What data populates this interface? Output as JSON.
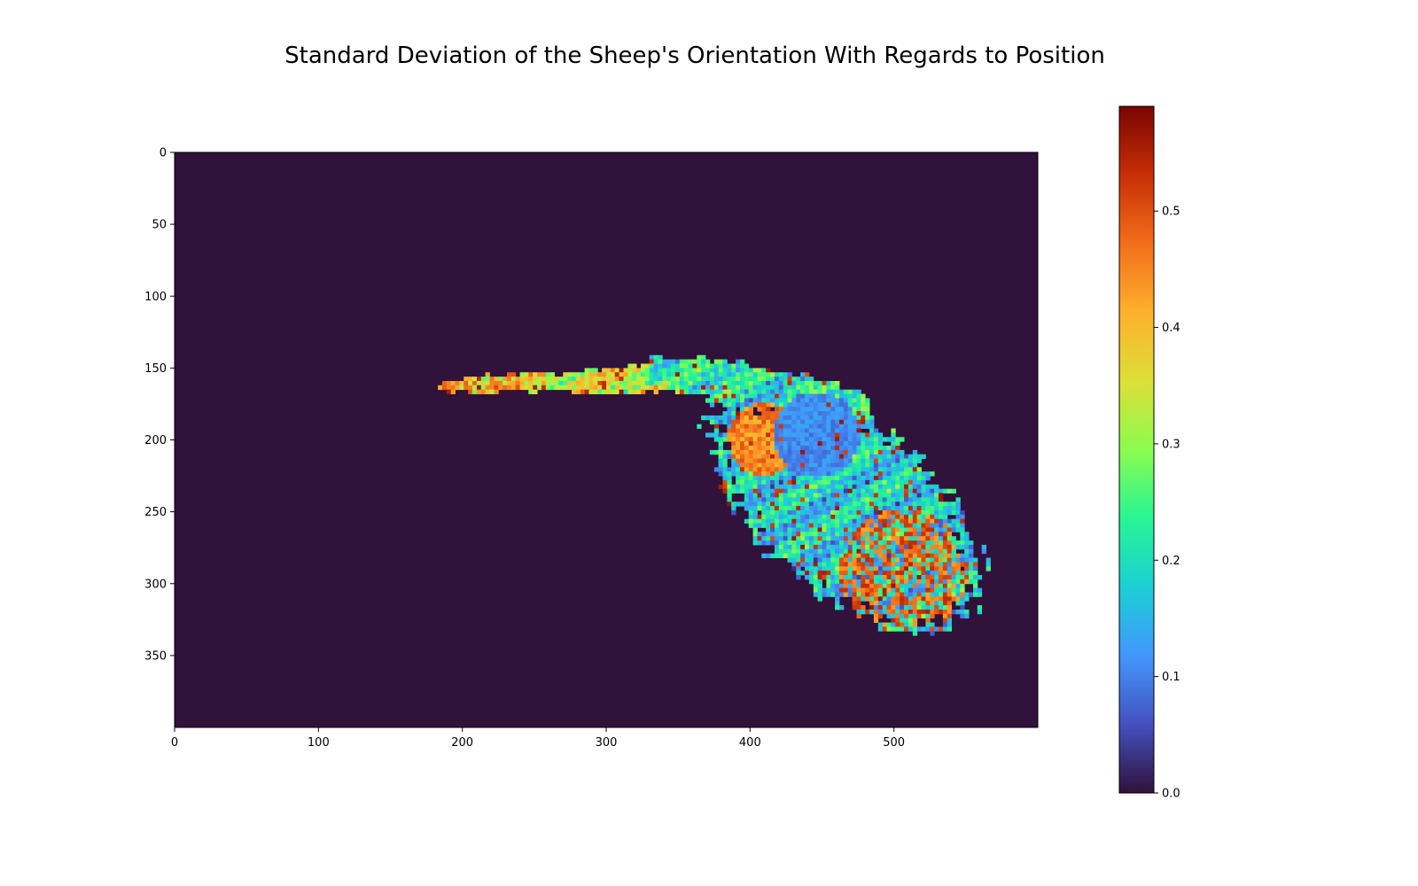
{
  "chart_data": {
    "type": "heatmap",
    "title": "Standard Deviation of the Sheep's Orientation With Regards to Position",
    "xlabel": "",
    "ylabel": "",
    "x_range": [
      0,
      600
    ],
    "y_range": [
      0,
      400
    ],
    "y_inverted": true,
    "x_ticks": [
      "0",
      "100",
      "200",
      "300",
      "400",
      "500"
    ],
    "y_ticks": [
      "0",
      "50",
      "100",
      "150",
      "200",
      "250",
      "300",
      "350"
    ],
    "colormap": "turbo",
    "background_color": "#30123b",
    "colorbar": {
      "range": [
        0.0,
        0.59
      ],
      "ticks": [
        "0.0",
        "0.1",
        "0.2",
        "0.3",
        "0.4",
        "0.5"
      ]
    },
    "grid": false,
    "regions": [
      {
        "name": "tail",
        "x_range": [
          183,
          360
        ],
        "y_center_left": 161,
        "y_center_right": 155,
        "thickness": [
          7,
          22
        ],
        "mean_value": 0.35
      },
      {
        "name": "neck",
        "x_range": [
          330,
          480
        ],
        "y_range": [
          138,
          190
        ],
        "mean_value": 0.22
      },
      {
        "name": "body",
        "center": [
          465,
          245
        ],
        "extent_x": [
          375,
          565
        ],
        "extent_y": [
          165,
          335
        ],
        "mean_value": 0.18
      },
      {
        "name": "high_left_patch",
        "center": [
          408,
          198
        ],
        "mean_value": 0.45
      },
      {
        "name": "high_lower_right_patches",
        "center": [
          505,
          292
        ],
        "mean_value": 0.48
      }
    ]
  }
}
